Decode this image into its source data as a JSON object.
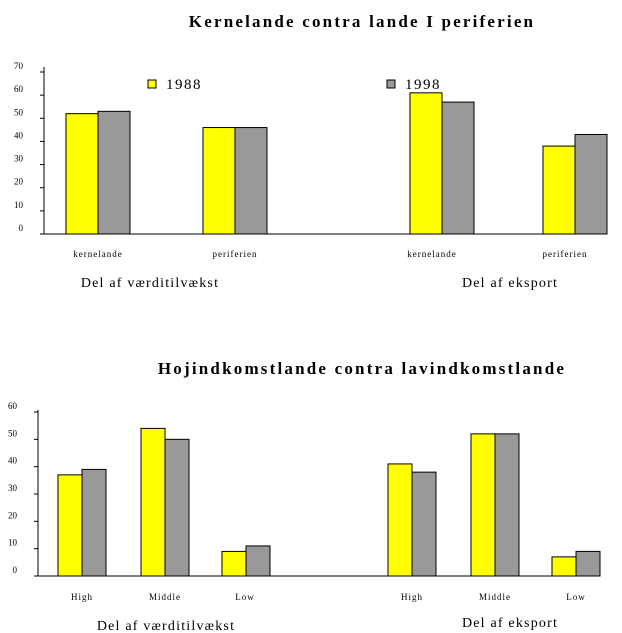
{
  "chart_data": [
    {
      "type": "bar",
      "title": "Kernelande contra lande I periferien",
      "ylim": [
        0,
        70
      ],
      "yticks": [
        "0",
        "10",
        "20",
        "30",
        "40",
        "50",
        "60",
        "70"
      ],
      "categories": [
        "kernelande",
        "periferien",
        "kernelande",
        "periferien"
      ],
      "groups": [
        "Del af værditilvækst",
        "Del af eksport"
      ],
      "legend_position": "top",
      "series": [
        {
          "name": "1988",
          "color": "#ffff00",
          "values": [
            52,
            46,
            61,
            38
          ]
        },
        {
          "name": "1998",
          "color": "#999999",
          "values": [
            53,
            46,
            57,
            43
          ]
        }
      ]
    },
    {
      "type": "bar",
      "title": "Hojindkomstlande contra lavindkomstlande",
      "ylim": [
        0,
        60
      ],
      "yticks": [
        "0",
        "10",
        "20",
        "30",
        "40",
        "50",
        "60"
      ],
      "categories": [
        "High",
        "Middle",
        "Low",
        "High",
        "Middle",
        "Low"
      ],
      "groups": [
        "Del af værditilvækst",
        "Del af eksport"
      ],
      "series": [
        {
          "color": "#ffff00",
          "values": [
            37,
            54,
            9,
            41,
            52,
            7
          ]
        },
        {
          "color": "#999999",
          "values": [
            39,
            50,
            11,
            38,
            52,
            9
          ]
        }
      ]
    }
  ]
}
